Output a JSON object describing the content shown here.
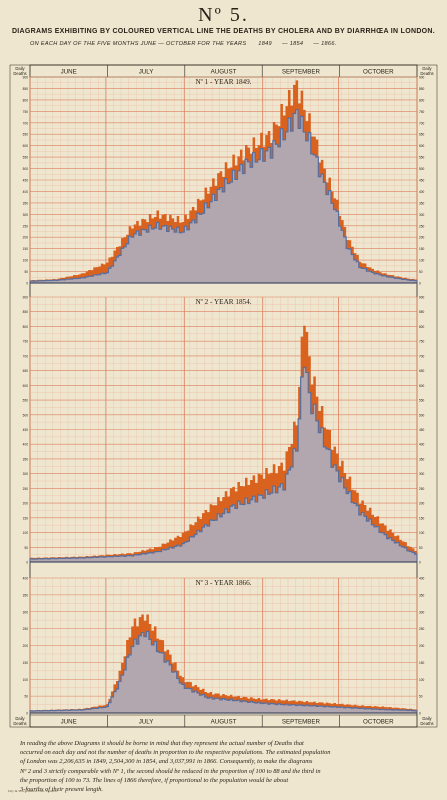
{
  "plate_number": "Nº 5.",
  "title": "DIAGRAMS EXHIBITING BY COLOURED VERTICAL LINE THE DEATHS BY CHOLERA AND BY DIARRHŒA IN LONDON.",
  "subtitle": {
    "lead": "ON EACH DAY OF THE FIVE MONTHS JUNE — OCTOBER FOR THE YEARS",
    "years": [
      "1849",
      "1854",
      "1866."
    ]
  },
  "months": [
    "JUNE",
    "JULY",
    "AUGUST",
    "SEPTEMBER",
    "OCTOBER"
  ],
  "axis_label": {
    "line1": "Daily",
    "line2": "Deaths"
  },
  "colors": {
    "cholera": "#d9621e",
    "diarrhoea": "#5a6e9c",
    "diarrhoea_fill": "#aab4c8",
    "grid_major": "#dd7d5c",
    "grid_minor": "#efb49c",
    "background": "#efe6cf"
  },
  "chart_data": [
    {
      "type": "area",
      "title": "Nº 1 - YEAR 1849.",
      "x_unit": "day from 1 June",
      "x_range": [
        0,
        153
      ],
      "ylim": [
        0,
        900
      ],
      "y_ticks": [
        "0",
        "50",
        "100",
        "150",
        "200",
        "250",
        "300",
        "350",
        "400",
        "450",
        "500",
        "550",
        "600",
        "650",
        "700",
        "750",
        "800",
        "850",
        "900"
      ],
      "grid": true,
      "series": [
        {
          "name": "Cholera",
          "x": [
            0,
            10,
            20,
            30,
            40,
            50,
            60,
            66,
            75,
            85,
            95,
            100,
            105,
            110,
            112,
            115,
            120,
            125,
            130,
            135,
            140,
            145,
            150,
            153
          ],
          "values": [
            12,
            17,
            40,
            90,
            250,
            300,
            270,
            350,
            480,
            580,
            650,
            760,
            865,
            700,
            640,
            520,
            380,
            200,
            95,
            60,
            40,
            28,
            18,
            15
          ]
        },
        {
          "name": "Diarrhoea",
          "x": [
            0,
            10,
            20,
            30,
            40,
            50,
            60,
            66,
            75,
            85,
            95,
            100,
            105,
            110,
            112,
            115,
            120,
            125,
            130,
            135,
            140,
            145,
            150,
            153
          ],
          "values": [
            8,
            12,
            22,
            45,
            210,
            250,
            225,
            290,
            410,
            520,
            580,
            650,
            740,
            620,
            560,
            460,
            330,
            160,
            70,
            45,
            30,
            20,
            12,
            10
          ]
        }
      ]
    },
    {
      "type": "area",
      "title": "Nº 2 - YEAR 1854.",
      "x_unit": "day from 1 June",
      "x_range": [
        0,
        153
      ],
      "ylim": [
        0,
        900
      ],
      "y_ticks": [
        "0",
        "50",
        "100",
        "150",
        "200",
        "250",
        "300",
        "350",
        "400",
        "450",
        "500",
        "550",
        "600",
        "650",
        "700",
        "750",
        "800",
        "850",
        "900"
      ],
      "grid": true,
      "series": [
        {
          "name": "Cholera",
          "x": [
            0,
            20,
            40,
            50,
            60,
            70,
            80,
            90,
            100,
            105,
            108,
            110,
            112,
            115,
            120,
            125,
            130,
            140,
            150,
            153
          ],
          "values": [
            14,
            18,
            30,
            50,
            95,
            180,
            250,
            290,
            330,
            480,
            850,
            680,
            600,
            500,
            380,
            290,
            210,
            120,
            50,
            35
          ]
        },
        {
          "name": "Diarrhoea",
          "x": [
            0,
            20,
            40,
            50,
            60,
            70,
            80,
            90,
            100,
            105,
            108,
            110,
            112,
            115,
            120,
            125,
            130,
            140,
            150,
            153
          ],
          "values": [
            10,
            14,
            22,
            35,
            60,
            130,
            190,
            220,
            260,
            390,
            700,
            560,
            510,
            430,
            320,
            240,
            170,
            90,
            35,
            25
          ]
        }
      ]
    },
    {
      "type": "area",
      "title": "Nº 3 - YEAR 1866.",
      "x_unit": "day from 1 June",
      "x_range": [
        0,
        153
      ],
      "ylim": [
        0,
        400
      ],
      "y_ticks": [
        "0",
        "50",
        "100",
        "150",
        "200",
        "250",
        "300",
        "350",
        "400"
      ],
      "grid": true,
      "series": [
        {
          "name": "Cholera",
          "x": [
            0,
            20,
            30,
            35,
            40,
            45,
            50,
            55,
            60,
            70,
            80,
            90,
            100,
            110,
            120,
            130,
            140,
            150,
            153
          ],
          "values": [
            8,
            12,
            25,
            120,
            260,
            290,
            230,
            170,
            100,
            60,
            50,
            42,
            38,
            33,
            28,
            22,
            18,
            12,
            10
          ]
        },
        {
          "name": "Diarrhoea",
          "x": [
            0,
            20,
            30,
            35,
            40,
            45,
            50,
            55,
            60,
            70,
            80,
            90,
            100,
            110,
            120,
            130,
            140,
            150,
            153
          ],
          "values": [
            6,
            9,
            18,
            90,
            200,
            240,
            190,
            140,
            80,
            45,
            38,
            30,
            25,
            22,
            18,
            14,
            10,
            8,
            6
          ]
        }
      ]
    }
  ],
  "note_lines": [
    "In reading the above Diagrams it should be borne in mind that they represent the actual number of Deaths that",
    "occurred on each day and not the number of deaths in proportion to the respective populations. The estimated population",
    "of London was 2,206,635 in 1849, 2,504,300 in 1854, and 3,037,991 in 1866. Consequently, to make the diagrams",
    "Nº 2 and 3 strictly comparable with Nº 1, the second should be reduced in the proportion of 100 to 88 and the third in",
    "the proportion of 100 to 73. The lines of 1866 therefore, if proportional to the population would be about",
    "3-fourths of their present length."
  ],
  "imprint": "Day & Son, Limited, Lith. London."
}
